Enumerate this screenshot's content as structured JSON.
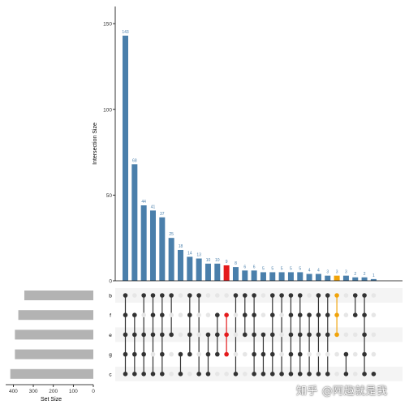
{
  "chart_data": {
    "type": "upset",
    "ylabel": "Intersection Size",
    "set_size_label": "Set Size",
    "y_ticks": [
      0,
      50,
      100,
      150
    ],
    "ylim": [
      0,
      160
    ],
    "set_size_ticks": [
      400,
      300,
      200,
      100,
      0
    ],
    "set_size_lim": [
      0,
      430
    ],
    "sets": [
      {
        "name": "b",
        "size": 345
      },
      {
        "name": "f",
        "size": 375
      },
      {
        "name": "e",
        "size": 392
      },
      {
        "name": "g",
        "size": 392
      },
      {
        "name": "c",
        "size": 415
      }
    ],
    "intersections": [
      {
        "value": 143,
        "members": [
          "b",
          "f",
          "e",
          "g",
          "c"
        ]
      },
      {
        "value": 68,
        "members": [
          "f",
          "e",
          "g",
          "c"
        ]
      },
      {
        "value": 44,
        "members": [
          "b",
          "e",
          "g",
          "c"
        ]
      },
      {
        "value": 41,
        "members": [
          "b",
          "f",
          "e",
          "c"
        ]
      },
      {
        "value": 37,
        "members": [
          "b",
          "f",
          "e",
          "g",
          "c"
        ]
      },
      {
        "value": 25,
        "members": [
          "b",
          "e"
        ]
      },
      {
        "value": 18,
        "members": [
          "g",
          "c"
        ]
      },
      {
        "value": 14,
        "members": [
          "b",
          "f",
          "e",
          "g"
        ]
      },
      {
        "value": 13,
        "members": [
          "b",
          "c"
        ]
      },
      {
        "value": 10,
        "members": [
          "e",
          "g",
          "c"
        ]
      },
      {
        "value": 10,
        "members": [
          "f",
          "e",
          "g"
        ]
      },
      {
        "value": 9,
        "members": [
          "f",
          "e",
          "g"
        ],
        "highlight": "#e41a1c"
      },
      {
        "value": 8,
        "members": [
          "b",
          "c"
        ]
      },
      {
        "value": 6,
        "members": [
          "b",
          "f",
          "e"
        ]
      },
      {
        "value": 6,
        "members": [
          "b",
          "f",
          "e",
          "g",
          "c"
        ]
      },
      {
        "value": 5,
        "members": [
          "e",
          "g",
          "c"
        ]
      },
      {
        "value": 5,
        "members": [
          "b",
          "f",
          "e",
          "g",
          "c"
        ]
      },
      {
        "value": 5,
        "members": [
          "b",
          "c"
        ]
      },
      {
        "value": 5,
        "members": [
          "b",
          "f",
          "e",
          "g",
          "c"
        ]
      },
      {
        "value": 5,
        "members": [
          "b",
          "f",
          "e",
          "g",
          "c"
        ]
      },
      {
        "value": 4,
        "members": [
          "f",
          "e",
          "c"
        ]
      },
      {
        "value": 4,
        "members": [
          "b",
          "f",
          "e",
          "c"
        ]
      },
      {
        "value": 3,
        "members": [
          "b",
          "f",
          "e",
          "c"
        ]
      },
      {
        "value": 3,
        "members": [
          "b",
          "f",
          "e"
        ],
        "highlight": "#f0a30a"
      },
      {
        "value": 3,
        "members": [
          "g",
          "c"
        ]
      },
      {
        "value": 2,
        "members": [
          "b",
          "f"
        ]
      },
      {
        "value": 2,
        "members": [
          "b",
          "f",
          "e",
          "g",
          "c"
        ]
      },
      {
        "value": 1,
        "members": [
          "c"
        ]
      }
    ],
    "colors": {
      "bar": "#4a7fab",
      "value_label": "#4a7fab",
      "set_bar": "#b3b3b3",
      "dot_on": "#333333",
      "dot_off": "#e6e6e6",
      "stripe": "#f4f4f4"
    }
  },
  "watermark": "知乎 @阿趣就是我"
}
